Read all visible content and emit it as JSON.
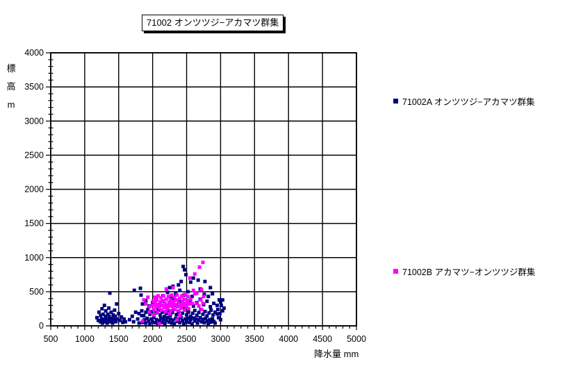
{
  "window": {
    "background": "#FFFFFF"
  },
  "title": "71002 オンツツジ−アカマツ群集",
  "axis_titles": {
    "y": "標\n高\nm",
    "x": "降水量 mm"
  },
  "legend": [
    {
      "label": "71002A オンツツジ−アカマツ群集",
      "color": "#000080"
    },
    {
      "label": "71002B アカマツ−オンツツジ群集",
      "color": "#FF00FF"
    }
  ],
  "chart_data": {
    "type": "scatter",
    "title": "71002 オンツツジ−アカマツ群集",
    "xlabel": "降水量 mm",
    "ylabel": "標高m",
    "xlim": [
      500,
      5000
    ],
    "ylim": [
      0,
      4000
    ],
    "x_ticks": [
      500,
      1000,
      1500,
      2000,
      2500,
      3000,
      3500,
      4000,
      4500,
      5000
    ],
    "y_ticks": [
      0,
      500,
      1000,
      1500,
      2000,
      2500,
      3000,
      3500,
      4000
    ],
    "x_minor_step": 100,
    "y_minor_step": 100,
    "grid": true,
    "grid_color": "#000000",
    "legend_position": "right",
    "marker_size": 5,
    "series": [
      {
        "name": "71002A オンツツジ−アカマツ群集",
        "color": "#000080",
        "marker": "square",
        "points": [
          [
            1180,
            120
          ],
          [
            1200,
            80
          ],
          [
            1210,
            200
          ],
          [
            1230,
            60
          ],
          [
            1235,
            150
          ],
          [
            1250,
            100
          ],
          [
            1255,
            250
          ],
          [
            1260,
            40
          ],
          [
            1270,
            170
          ],
          [
            1280,
            90
          ],
          [
            1290,
            300
          ],
          [
            1300,
            60
          ],
          [
            1305,
            140
          ],
          [
            1310,
            220
          ],
          [
            1320,
            100
          ],
          [
            1330,
            40
          ],
          [
            1340,
            170
          ],
          [
            1350,
            90
          ],
          [
            1355,
            260
          ],
          [
            1360,
            140
          ],
          [
            1370,
            480
          ],
          [
            1380,
            60
          ],
          [
            1390,
            200
          ],
          [
            1400,
            110
          ],
          [
            1410,
            40
          ],
          [
            1420,
            160
          ],
          [
            1430,
            90
          ],
          [
            1440,
            230
          ],
          [
            1450,
            140
          ],
          [
            1460,
            60
          ],
          [
            1470,
            320
          ],
          [
            1480,
            100
          ],
          [
            1500,
            180
          ],
          [
            1520,
            80
          ],
          [
            1540,
            130
          ],
          [
            1560,
            50
          ],
          [
            1580,
            100
          ],
          [
            1600,
            60
          ],
          [
            1660,
            90
          ],
          [
            1700,
            140
          ],
          [
            1720,
            60
          ],
          [
            1730,
            520
          ],
          [
            1750,
            200
          ],
          [
            1780,
            100
          ],
          [
            1800,
            40
          ],
          [
            1820,
            550
          ],
          [
            1830,
            450
          ],
          [
            1840,
            150
          ],
          [
            1850,
            50
          ],
          [
            1880,
            90
          ],
          [
            1900,
            40
          ],
          [
            1920,
            110
          ],
          [
            1940,
            70
          ],
          [
            1960,
            30
          ],
          [
            1980,
            100
          ],
          [
            2000,
            60
          ],
          [
            2020,
            120
          ],
          [
            2040,
            45
          ],
          [
            2060,
            90
          ],
          [
            2080,
            30
          ],
          [
            2100,
            70
          ],
          [
            2120,
            110
          ],
          [
            2140,
            50
          ],
          [
            2160,
            95
          ],
          [
            2180,
            35
          ],
          [
            2200,
            80
          ],
          [
            2220,
            120
          ],
          [
            2240,
            55
          ],
          [
            2260,
            100
          ],
          [
            2280,
            40
          ],
          [
            2300,
            85
          ],
          [
            2320,
            30
          ],
          [
            2340,
            110
          ],
          [
            2360,
            65
          ],
          [
            2380,
            95
          ],
          [
            2400,
            45
          ],
          [
            2420,
            120
          ],
          [
            2440,
            75
          ],
          [
            2460,
            35
          ],
          [
            2480,
            100
          ],
          [
            2500,
            60
          ],
          [
            2520,
            110
          ],
          [
            2540,
            50
          ],
          [
            2560,
            90
          ],
          [
            2580,
            30
          ],
          [
            2600,
            115
          ],
          [
            2620,
            70
          ],
          [
            2640,
            100
          ],
          [
            2660,
            40
          ],
          [
            2680,
            85
          ],
          [
            2700,
            120
          ],
          [
            2720,
            60
          ],
          [
            2740,
            95
          ],
          [
            2760,
            45
          ],
          [
            2780,
            110
          ],
          [
            2800,
            70
          ],
          [
            2820,
            35
          ],
          [
            2840,
            90
          ],
          [
            2860,
            55
          ],
          [
            2880,
            105
          ],
          [
            2900,
            65
          ],
          [
            2920,
            40
          ],
          [
            1800,
            180
          ],
          [
            1840,
            220
          ],
          [
            1870,
            150
          ],
          [
            1900,
            200
          ],
          [
            1930,
            240
          ],
          [
            1960,
            170
          ],
          [
            1990,
            210
          ],
          [
            2020,
            140
          ],
          [
            2050,
            190
          ],
          [
            2080,
            230
          ],
          [
            2110,
            160
          ],
          [
            2140,
            200
          ],
          [
            2170,
            135
          ],
          [
            2200,
            180
          ],
          [
            2230,
            225
          ],
          [
            2260,
            155
          ],
          [
            2290,
            195
          ],
          [
            2320,
            240
          ],
          [
            2350,
            165
          ],
          [
            2380,
            205
          ],
          [
            2410,
            140
          ],
          [
            2440,
            185
          ],
          [
            2470,
            230
          ],
          [
            2500,
            160
          ],
          [
            2530,
            200
          ],
          [
            2560,
            140
          ],
          [
            2590,
            185
          ],
          [
            2620,
            225
          ],
          [
            2650,
            155
          ],
          [
            2680,
            195
          ],
          [
            2710,
            240
          ],
          [
            2740,
            170
          ],
          [
            2770,
            210
          ],
          [
            2800,
            145
          ],
          [
            2830,
            190
          ],
          [
            2860,
            230
          ],
          [
            2890,
            160
          ],
          [
            2920,
            200
          ],
          [
            2950,
            175
          ],
          [
            1850,
            320
          ],
          [
            1900,
            370
          ],
          [
            1950,
            290
          ],
          [
            2000,
            340
          ],
          [
            2050,
            390
          ],
          [
            2100,
            310
          ],
          [
            2150,
            360
          ],
          [
            2200,
            280
          ],
          [
            2250,
            330
          ],
          [
            2300,
            380
          ],
          [
            2350,
            300
          ],
          [
            2400,
            350
          ],
          [
            2450,
            270
          ],
          [
            2500,
            320
          ],
          [
            2550,
            370
          ],
          [
            2600,
            290
          ],
          [
            2650,
            340
          ],
          [
            2700,
            390
          ],
          [
            2750,
            310
          ],
          [
            2800,
            360
          ],
          [
            2850,
            280
          ],
          [
            2900,
            330
          ],
          [
            2950,
            300
          ],
          [
            3000,
            350
          ],
          [
            2150,
            440
          ],
          [
            2220,
            490
          ],
          [
            2280,
            430
          ],
          [
            2340,
            470
          ],
          [
            2400,
            520
          ],
          [
            2460,
            450
          ],
          [
            2520,
            500
          ],
          [
            2580,
            430
          ],
          [
            2640,
            480
          ],
          [
            2700,
            540
          ],
          [
            2760,
            460
          ],
          [
            2820,
            430
          ],
          [
            2880,
            470
          ],
          [
            2250,
            560
          ],
          [
            2300,
            580
          ],
          [
            2380,
            600
          ],
          [
            2420,
            650
          ],
          [
            2450,
            870
          ],
          [
            2470,
            820
          ],
          [
            2490,
            750
          ],
          [
            2560,
            640
          ],
          [
            2600,
            700
          ],
          [
            2670,
            670
          ],
          [
            2770,
            650
          ],
          [
            2850,
            560
          ],
          [
            2980,
            380
          ],
          [
            2960,
            240
          ],
          [
            2990,
            180
          ],
          [
            3010,
            300
          ],
          [
            3030,
            220
          ],
          [
            3050,
            260
          ],
          [
            2970,
            120
          ],
          [
            3000,
            90
          ],
          [
            3030,
            380
          ]
        ]
      },
      {
        "name": "71002B アカマツ−オンツツジ群集",
        "color": "#FF00FF",
        "marker": "square",
        "points": [
          [
            2000,
            300
          ],
          [
            2010,
            360
          ],
          [
            2020,
            240
          ],
          [
            2030,
            420
          ],
          [
            2040,
            330
          ],
          [
            2050,
            280
          ],
          [
            2060,
            380
          ],
          [
            2070,
            200
          ],
          [
            2080,
            440
          ],
          [
            2090,
            310
          ],
          [
            2100,
            260
          ],
          [
            2110,
            350
          ],
          [
            2120,
            410
          ],
          [
            2130,
            230
          ],
          [
            2140,
            300
          ],
          [
            2150,
            370
          ],
          [
            2160,
            440
          ],
          [
            2170,
            270
          ],
          [
            2180,
            330
          ],
          [
            2190,
            210
          ],
          [
            2200,
            390
          ],
          [
            2210,
            300
          ],
          [
            2220,
            250
          ],
          [
            2230,
            430
          ],
          [
            2240,
            340
          ],
          [
            2250,
            290
          ],
          [
            2260,
            380
          ],
          [
            2270,
            220
          ],
          [
            2280,
            450
          ],
          [
            2290,
            320
          ],
          [
            2300,
            270
          ],
          [
            2310,
            360
          ],
          [
            2320,
            420
          ],
          [
            2330,
            240
          ],
          [
            2340,
            310
          ],
          [
            2350,
            380
          ],
          [
            2360,
            450
          ],
          [
            2370,
            280
          ],
          [
            2380,
            340
          ],
          [
            2390,
            220
          ],
          [
            2400,
            400
          ],
          [
            2410,
            310
          ],
          [
            2420,
            260
          ],
          [
            2430,
            440
          ],
          [
            2440,
            350
          ],
          [
            2450,
            300
          ],
          [
            2460,
            390
          ],
          [
            2470,
            230
          ],
          [
            2480,
            460
          ],
          [
            2490,
            330
          ],
          [
            2500,
            280
          ],
          [
            2510,
            370
          ],
          [
            2520,
            430
          ],
          [
            2530,
            250
          ],
          [
            2540,
            320
          ],
          [
            1870,
            380
          ],
          [
            1900,
            320
          ],
          [
            1930,
            420
          ],
          [
            1950,
            200
          ],
          [
            1960,
            280
          ],
          [
            2020,
            160
          ],
          [
            2560,
            390
          ],
          [
            2580,
            330
          ],
          [
            2600,
            520
          ],
          [
            2620,
            470
          ],
          [
            2640,
            330
          ],
          [
            2650,
            480
          ],
          [
            2680,
            290
          ],
          [
            2710,
            380
          ],
          [
            2720,
            530
          ],
          [
            2720,
            240
          ],
          [
            2740,
            330
          ],
          [
            2750,
            430
          ],
          [
            2740,
            930
          ],
          [
            2690,
            860
          ],
          [
            2620,
            760
          ],
          [
            2550,
            700
          ],
          [
            2300,
            560
          ],
          [
            2200,
            540
          ],
          [
            1850,
            70
          ],
          [
            2100,
            30
          ],
          [
            2360,
            90
          ],
          [
            2250,
            180
          ],
          [
            2400,
            150
          ]
        ]
      }
    ]
  }
}
